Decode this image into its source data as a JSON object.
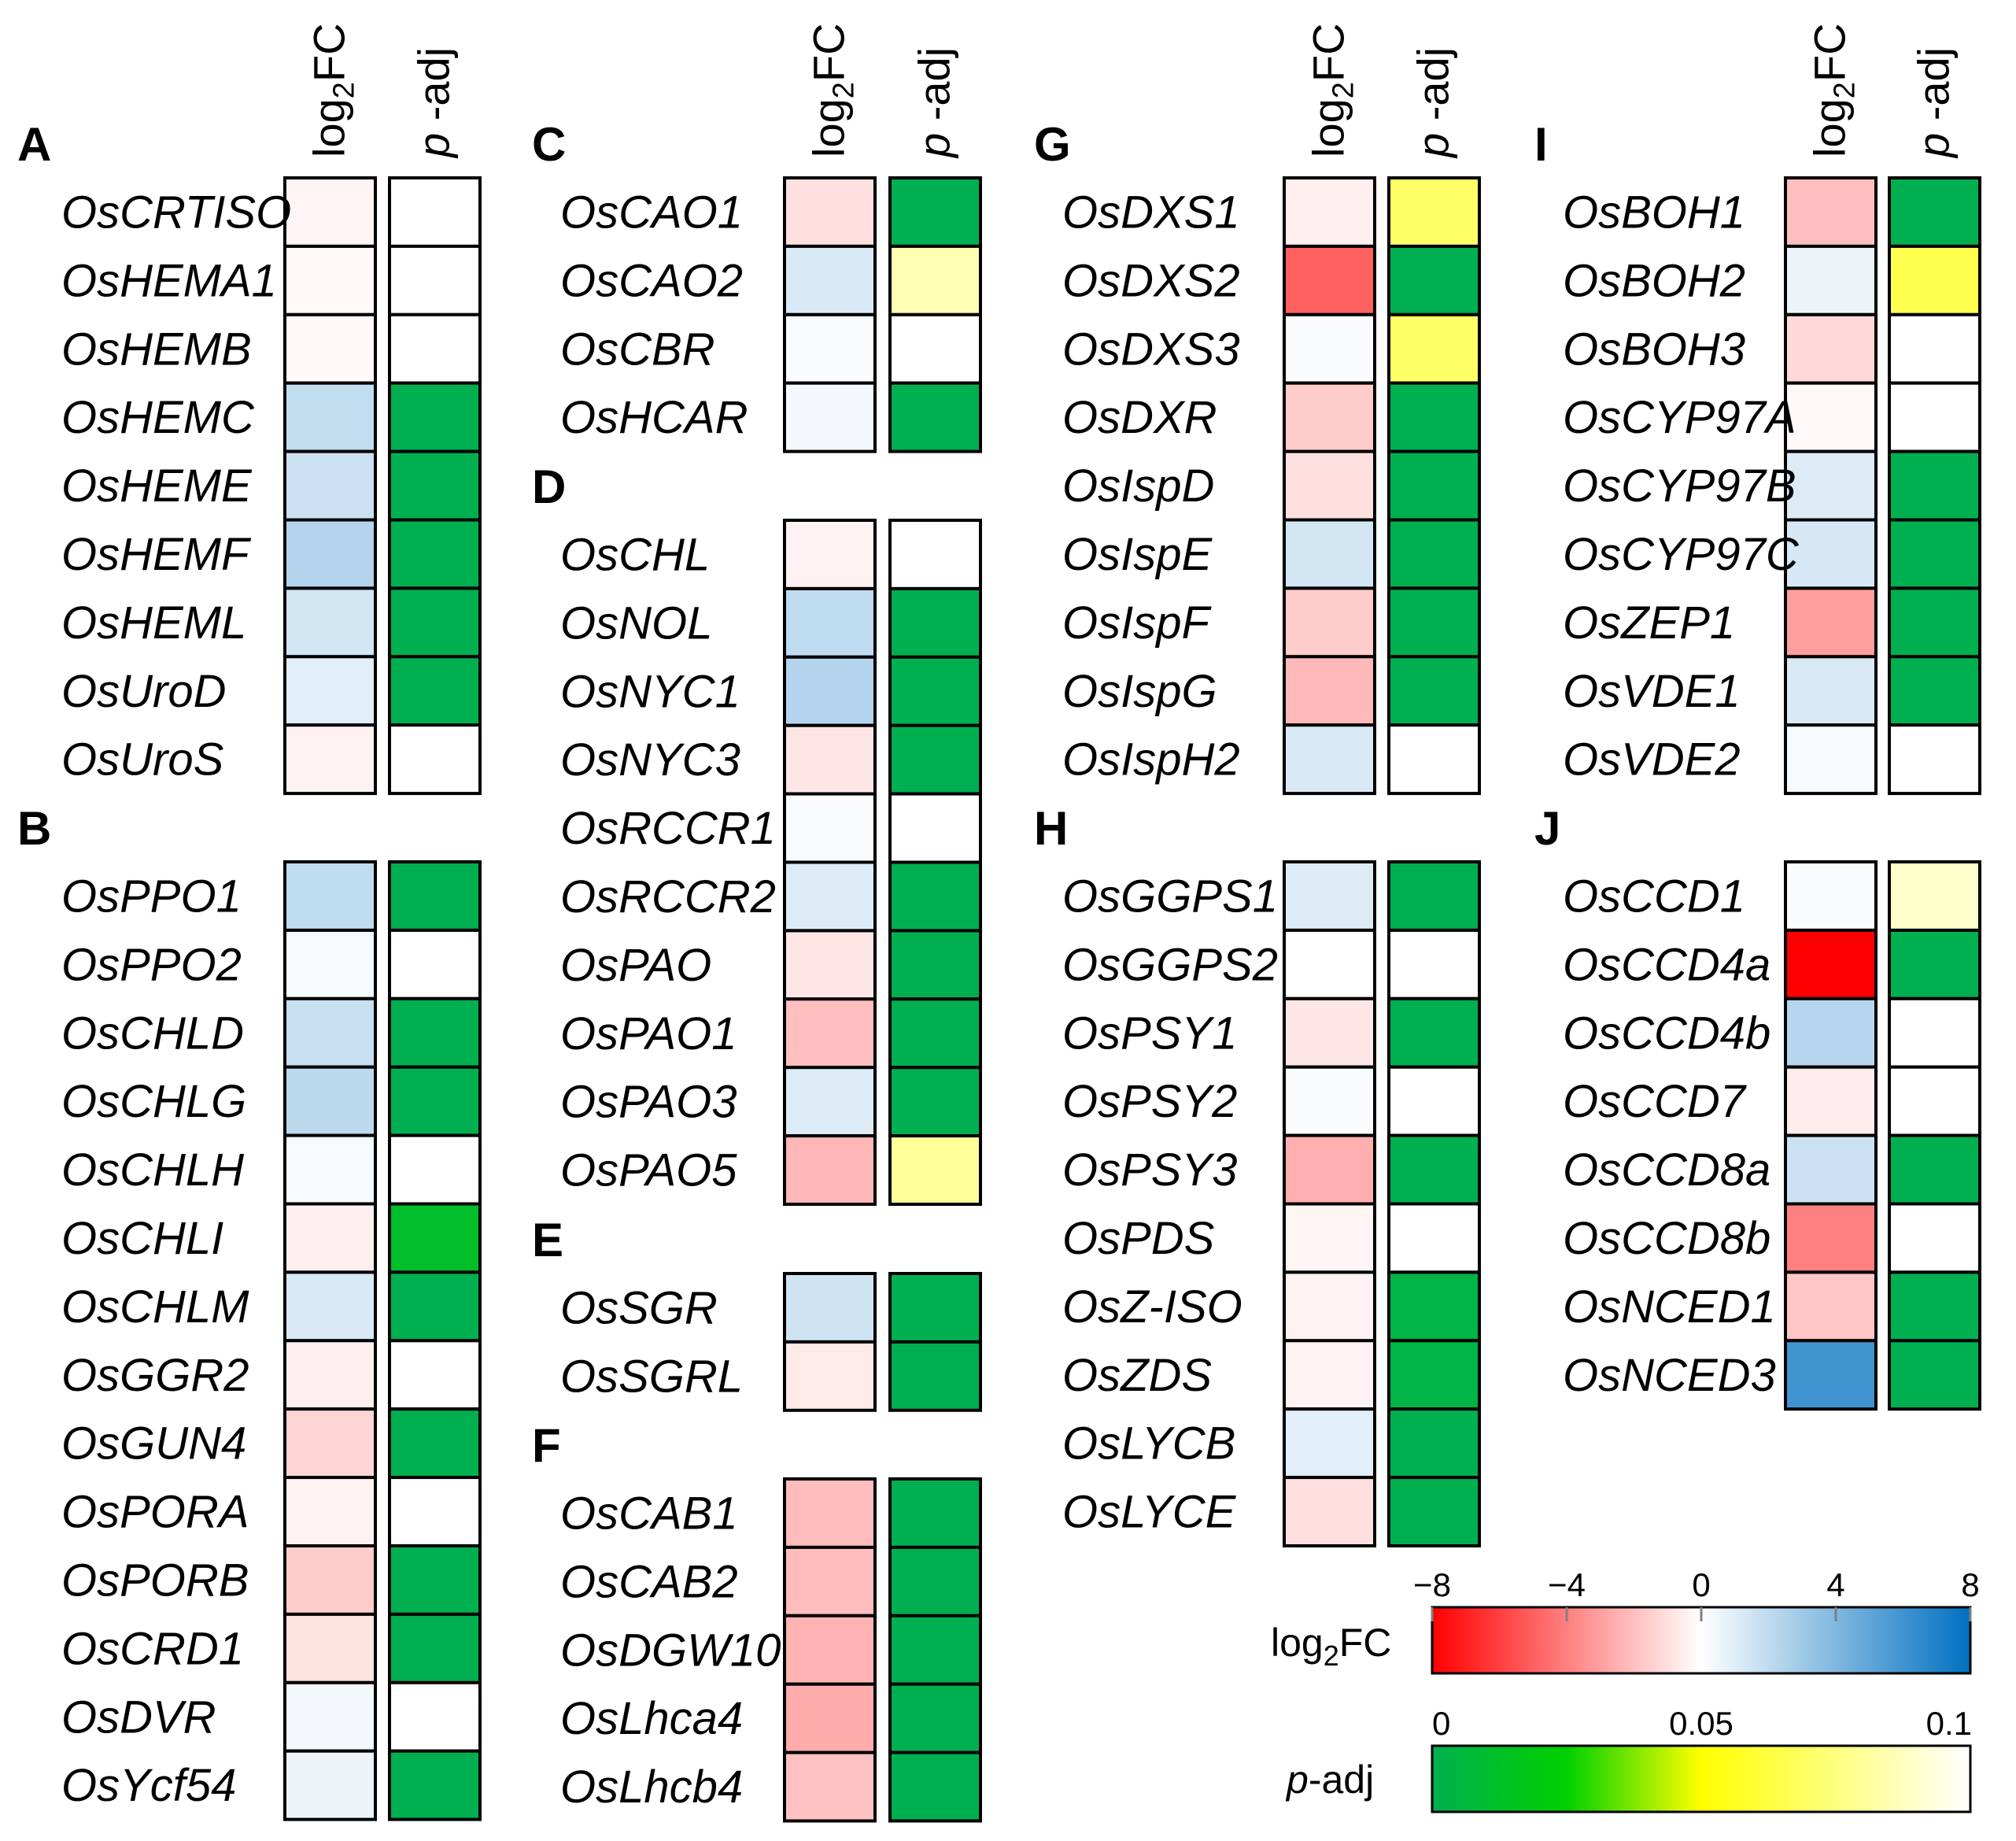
{
  "chart_data": {
    "type": "heatmap",
    "column_headers": {
      "log2fc": "log2FC",
      "log2fc_base": "log",
      "log2fc_sub": "2",
      "log2fc_tail": "FC",
      "padj_p": "p",
      "padj_rest": " -adj"
    },
    "panels": [
      {
        "label": "A",
        "genes": [
          {
            "gene": "OsCRTISO",
            "log2FC": -0.3,
            "padj": null
          },
          {
            "gene": "OsHEMA1",
            "log2FC": -0.2,
            "padj": null
          },
          {
            "gene": "OsHEMB",
            "log2FC": -0.2,
            "padj": null
          },
          {
            "gene": "OsHEMC",
            "log2FC": 1.9,
            "padj": 0
          },
          {
            "gene": "OsHEME",
            "log2FC": 1.6,
            "padj": 0
          },
          {
            "gene": "OsHEMF",
            "log2FC": 2.4,
            "padj": 0
          },
          {
            "gene": "OsHEML",
            "log2FC": 1.4,
            "padj": 0
          },
          {
            "gene": "OsUroD",
            "log2FC": 0.9,
            "padj": 0
          },
          {
            "gene": "OsUroS",
            "log2FC": -0.4,
            "padj": null
          }
        ]
      },
      {
        "label": "B",
        "genes": [
          {
            "gene": "OsPPO1",
            "log2FC": 2.0,
            "padj": 0
          },
          {
            "gene": "OsPPO2",
            "log2FC": 0.3,
            "padj": null
          },
          {
            "gene": "OsCHLD",
            "log2FC": 1.8,
            "padj": 0
          },
          {
            "gene": "OsCHLG",
            "log2FC": 2.1,
            "padj": 0
          },
          {
            "gene": "OsCHLH",
            "log2FC": 0.3,
            "padj": null
          },
          {
            "gene": "OsCHLI",
            "log2FC": -0.5,
            "padj": 0.012
          },
          {
            "gene": "OsCHLM",
            "log2FC": 1.2,
            "padj": 0
          },
          {
            "gene": "OsGGR2",
            "log2FC": -0.5,
            "padj": null
          },
          {
            "gene": "OsGUN4",
            "log2FC": -1.3,
            "padj": 0
          },
          {
            "gene": "OsPORA",
            "log2FC": -0.4,
            "padj": null
          },
          {
            "gene": "OsPORB",
            "log2FC": -1.6,
            "padj": 0
          },
          {
            "gene": "OsCRD1",
            "log2FC": -0.9,
            "padj": 0
          },
          {
            "gene": "OsDVR",
            "log2FC": 0.4,
            "padj": null
          },
          {
            "gene": "OsYcf54",
            "log2FC": 0.6,
            "padj": 0
          }
        ]
      },
      {
        "label": "C",
        "genes": [
          {
            "gene": "OsCAO1",
            "log2FC": -1.0,
            "padj": 0
          },
          {
            "gene": "OsCAO2",
            "log2FC": 1.2,
            "padj": 0.085
          },
          {
            "gene": "OsCBR",
            "log2FC": 0.2,
            "padj": null
          },
          {
            "gene": "OsHCAR",
            "log2FC": 0.4,
            "padj": 0
          }
        ]
      },
      {
        "label": "D",
        "genes": [
          {
            "gene": "OsCHL",
            "log2FC": -0.4,
            "padj": null
          },
          {
            "gene": "OsNOL",
            "log2FC": 2.0,
            "padj": 0
          },
          {
            "gene": "OsNYC1",
            "log2FC": 2.4,
            "padj": 0
          },
          {
            "gene": "OsNYC3",
            "log2FC": -0.8,
            "padj": 0
          },
          {
            "gene": "OsRCCR1",
            "log2FC": 0.2,
            "padj": null
          },
          {
            "gene": "OsRCCR2",
            "log2FC": 1.1,
            "padj": 0
          },
          {
            "gene": "OsPAO",
            "log2FC": -0.8,
            "padj": 0
          },
          {
            "gene": "OsPAO1",
            "log2FC": -2.0,
            "padj": 0
          },
          {
            "gene": "OsPAO3",
            "log2FC": 1.1,
            "padj": 0
          },
          {
            "gene": "OsPAO5",
            "log2FC": -2.3,
            "padj": 0.08
          }
        ]
      },
      {
        "label": "E",
        "genes": [
          {
            "gene": "OsSGR",
            "log2FC": 1.5,
            "padj": 0
          },
          {
            "gene": "OsSGRL",
            "log2FC": -0.7,
            "padj": 0
          }
        ]
      },
      {
        "label": "F",
        "genes": [
          {
            "gene": "OsCAB1",
            "log2FC": -2.1,
            "padj": 0
          },
          {
            "gene": "OsCAB2",
            "log2FC": -2.1,
            "padj": 0
          },
          {
            "gene": "OsDGW10",
            "log2FC": -2.4,
            "padj": 0
          },
          {
            "gene": "OsLhca4",
            "log2FC": -2.6,
            "padj": 0
          },
          {
            "gene": "OsLhcb4",
            "log2FC": -1.9,
            "padj": 0
          }
        ]
      },
      {
        "label": "G",
        "genes": [
          {
            "gene": "OsDXS1",
            "log2FC": -0.5,
            "padj": 0.07
          },
          {
            "gene": "OsDXS2",
            "log2FC": -5.0,
            "padj": 0
          },
          {
            "gene": "OsDXS3",
            "log2FC": 0.2,
            "padj": 0.07
          },
          {
            "gene": "OsDXR",
            "log2FC": -1.6,
            "padj": 0
          },
          {
            "gene": "OsIspD",
            "log2FC": -1.0,
            "padj": 0
          },
          {
            "gene": "OsIspE",
            "log2FC": 1.4,
            "padj": 0
          },
          {
            "gene": "OsIspF",
            "log2FC": -1.6,
            "padj": 0
          },
          {
            "gene": "OsIspG",
            "log2FC": -2.2,
            "padj": 0
          },
          {
            "gene": "OsIspH2",
            "log2FC": 1.2,
            "padj": null
          }
        ]
      },
      {
        "label": "H",
        "genes": [
          {
            "gene": "OsGGPS1",
            "log2FC": 1.1,
            "padj": 0
          },
          {
            "gene": "OsGGPS2",
            "log2FC": 0.0,
            "padj": null
          },
          {
            "gene": "OsPSY1",
            "log2FC": -0.8,
            "padj": 0
          },
          {
            "gene": "OsPSY2",
            "log2FC": 0.2,
            "padj": null
          },
          {
            "gene": "OsPSY3",
            "log2FC": -2.5,
            "padj": 0
          },
          {
            "gene": "OsPDS",
            "log2FC": -0.3,
            "padj": null
          },
          {
            "gene": "OsZ-ISO",
            "log2FC": -0.4,
            "padj": 0.003
          },
          {
            "gene": "OsZDS",
            "log2FC": -0.4,
            "padj": 0.003
          },
          {
            "gene": "OsLYCB",
            "log2FC": 0.9,
            "padj": 0
          },
          {
            "gene": "OsLYCE",
            "log2FC": -1.0,
            "padj": 0
          }
        ]
      },
      {
        "label": "I",
        "genes": [
          {
            "gene": "OsBOH1",
            "log2FC": -2.0,
            "padj": 0
          },
          {
            "gene": "OsBOH2",
            "log2FC": 0.6,
            "padj": 0.065
          },
          {
            "gene": "OsBOH3",
            "log2FC": -1.2,
            "padj": null
          },
          {
            "gene": "OsCYP97A",
            "log2FC": -0.2,
            "padj": null
          },
          {
            "gene": "OsCYP97B",
            "log2FC": 1.1,
            "padj": 0
          },
          {
            "gene": "OsCYP97C",
            "log2FC": 1.3,
            "padj": 0
          },
          {
            "gene": "OsZEP1",
            "log2FC": -3.0,
            "padj": 0
          },
          {
            "gene": "OsVDE1",
            "log2FC": 1.2,
            "padj": 0
          },
          {
            "gene": "OsVDE2",
            "log2FC": 0.3,
            "padj": null
          }
        ]
      },
      {
        "label": "J",
        "genes": [
          {
            "gene": "OsCCD1",
            "log2FC": 0.2,
            "padj": 0.09
          },
          {
            "gene": "OsCCD4a",
            "log2FC": -8.0,
            "padj": 0
          },
          {
            "gene": "OsCCD4b",
            "log2FC": 2.3,
            "padj": null
          },
          {
            "gene": "OsCCD7",
            "log2FC": -0.6,
            "padj": null
          },
          {
            "gene": "OsCCD8a",
            "log2FC": 1.6,
            "padj": 0
          },
          {
            "gene": "OsCCD8b",
            "log2FC": -4.0,
            "padj": null
          },
          {
            "gene": "OsNCED1",
            "log2FC": -1.8,
            "padj": 0
          },
          {
            "gene": "OsNCED3",
            "log2FC": 6.0,
            "padj": 0
          }
        ]
      }
    ],
    "colorbars": {
      "log2fc": {
        "title_base": "log",
        "title_sub": "2",
        "title_tail": "FC",
        "range": [
          -8,
          8
        ],
        "ticks": [
          -8,
          -4,
          0,
          4,
          8
        ],
        "tick_labels": [
          "−8",
          "−4",
          "0",
          "4",
          "8"
        ],
        "colors": [
          "#ff0000",
          "#ffffff",
          "#0070c0"
        ]
      },
      "padj": {
        "title_p": "p",
        "title_rest": "-adj",
        "range": [
          0,
          0.1
        ],
        "ticks": [
          0,
          0.05,
          0.1
        ],
        "tick_labels": [
          "0",
          "0.05",
          "0.1"
        ],
        "colors": [
          "#00b050",
          "#00d000",
          "#ffff00",
          "#ffffff"
        ]
      }
    }
  }
}
